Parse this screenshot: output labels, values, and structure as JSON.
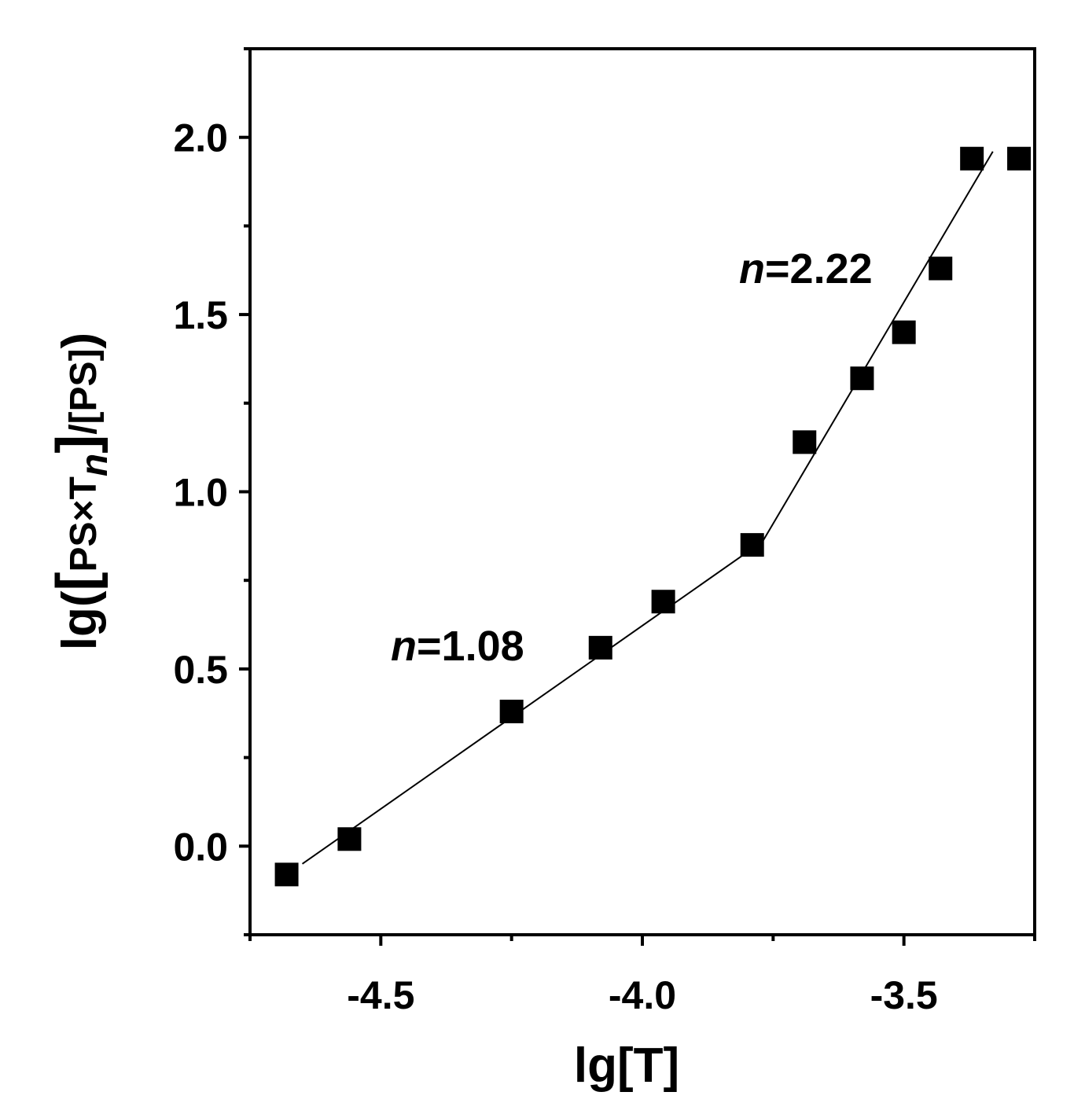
{
  "chart_data": {
    "type": "scatter",
    "xlabel": "lg[T]",
    "ylabel": {
      "prefix": "lg(",
      "bracket_open": "[",
      "ps": "PS×T",
      "sub": "n",
      "bracket_close": "]",
      "tail": "/[PS]",
      "suffix": ")"
    },
    "xlim": [
      -4.75,
      -3.25
    ],
    "ylim": [
      -0.25,
      2.25
    ],
    "x_ticks": [
      {
        "value": -4.5,
        "label": "-4.5"
      },
      {
        "value": -4.0,
        "label": "-4.0"
      },
      {
        "value": -3.5,
        "label": "-3.5"
      }
    ],
    "x_minor_ticks": [
      -4.75,
      -4.25,
      -3.75,
      -3.25
    ],
    "y_ticks": [
      {
        "value": 0.0,
        "label": "0.0"
      },
      {
        "value": 0.5,
        "label": "0.5"
      },
      {
        "value": 1.0,
        "label": "1.0"
      },
      {
        "value": 1.5,
        "label": "1.5"
      },
      {
        "value": 2.0,
        "label": "2.0"
      }
    ],
    "y_minor_ticks": [
      -0.25,
      0.25,
      0.75,
      1.25,
      1.75,
      2.25
    ],
    "series": [
      {
        "marker": "square",
        "color": "#000000",
        "points": [
          {
            "x": -4.68,
            "y": -0.08
          },
          {
            "x": -4.56,
            "y": 0.02
          },
          {
            "x": -4.25,
            "y": 0.38
          },
          {
            "x": -4.08,
            "y": 0.56
          },
          {
            "x": -3.96,
            "y": 0.69
          },
          {
            "x": -3.79,
            "y": 0.85
          },
          {
            "x": -3.69,
            "y": 1.14
          },
          {
            "x": -3.58,
            "y": 1.32
          },
          {
            "x": -3.5,
            "y": 1.45
          },
          {
            "x": -3.43,
            "y": 1.63
          },
          {
            "x": -3.37,
            "y": 1.94
          },
          {
            "x": -3.28,
            "y": 1.94
          }
        ]
      }
    ],
    "fit_lines": [
      {
        "label_var": "n",
        "label_value": "=1.08",
        "from": {
          "x": -4.65,
          "y": -0.05
        },
        "to": {
          "x": -3.77,
          "y": 0.86
        }
      },
      {
        "label_var": "n",
        "label_value": "=2.22",
        "from": {
          "x": -3.77,
          "y": 0.86
        },
        "to": {
          "x": -3.33,
          "y": 1.96
        }
      }
    ],
    "grid": false,
    "legend": "none"
  }
}
